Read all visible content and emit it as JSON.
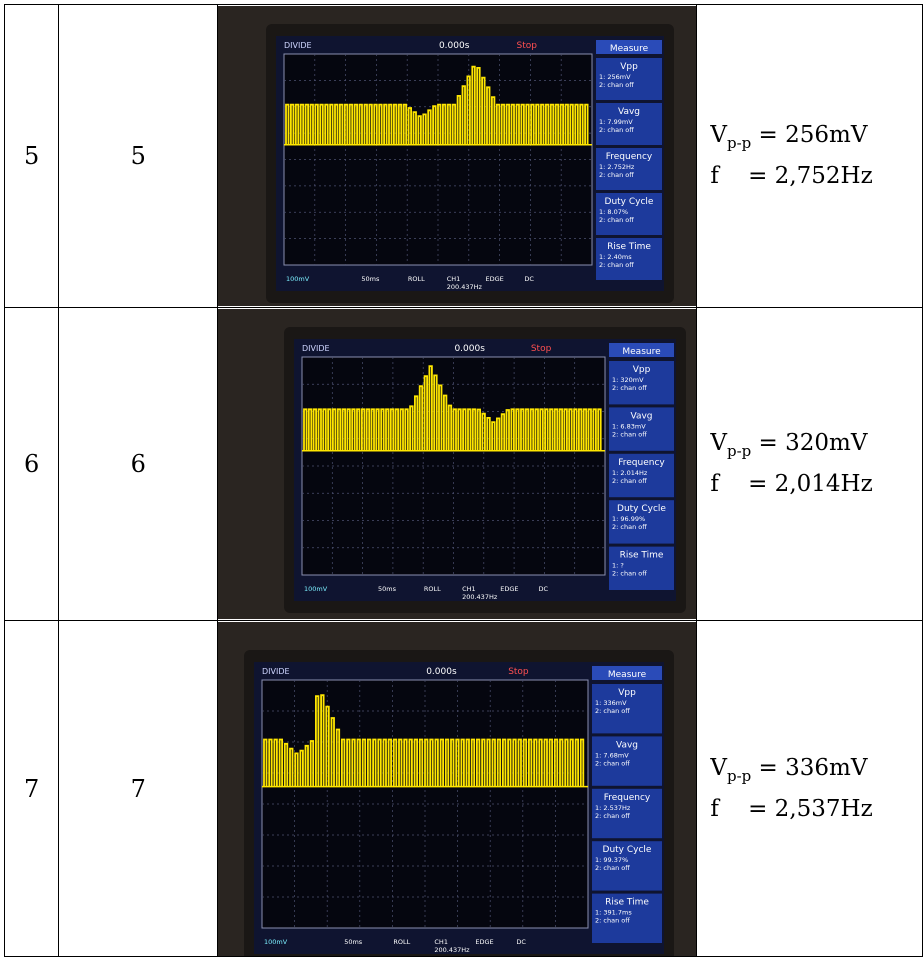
{
  "rows": [
    {
      "col1": "5",
      "col2": "5",
      "vpp_label": "V",
      "vpp_sub": "p-p",
      "vpp_value": " = 256mV",
      "freq_line": "f    = 2,752Hz",
      "osc": {
        "top_left": "DIVIDE",
        "time_offset": "0.000s",
        "stop": "Stop",
        "measure": "Measure",
        "panel": [
          {
            "title": "Vpp",
            "l1": "1: 256mV",
            "l2": "2: chan off"
          },
          {
            "title": "Vavg",
            "l1": "1: 7.99mV",
            "l2": "2: chan off"
          },
          {
            "title": "Frequency",
            "l1": "1: 2.752Hz",
            "l2": "2: chan off"
          },
          {
            "title": "Duty Cycle",
            "l1": "1: 8.07%",
            "l2": "2: chan off"
          },
          {
            "title": "Rise Time",
            "l1": "1: 2.40ms",
            "l2": "2: chan off"
          }
        ],
        "status1": "100mV",
        "status2": "50ms",
        "status3": "ROLL",
        "status4": "CH1",
        "status5": "EDGE",
        "status6": "DC",
        "status7": "200.437Hz",
        "peak_position": 0.62,
        "dip_position": 0.44,
        "peak_direction": "up"
      }
    },
    {
      "col1": "6",
      "col2": "6",
      "vpp_label": "V",
      "vpp_sub": "p-p",
      "vpp_value": " = 320mV",
      "freq_line": "f    = 2,014Hz",
      "osc": {
        "top_left": "DIVIDE",
        "time_offset": "0.000s",
        "stop": "Stop",
        "measure": "Measure",
        "panel": [
          {
            "title": "Vpp",
            "l1": "1: 320mV",
            "l2": "2: chan off"
          },
          {
            "title": "Vavg",
            "l1": "1: 6.83mV",
            "l2": "2: chan off"
          },
          {
            "title": "Frequency",
            "l1": "1: 2.014Hz",
            "l2": "2: chan off"
          },
          {
            "title": "Duty Cycle",
            "l1": "1: 96.99%",
            "l2": "2: chan off"
          },
          {
            "title": "Rise Time",
            "l1": "1: ?",
            "l2": "2: chan off"
          }
        ],
        "status1": "100mV",
        "status2": "50ms",
        "status3": "ROLL",
        "status4": "CH1",
        "status5": "EDGE",
        "status6": "DC",
        "status7": "200.437Hz",
        "peak_position": 0.42,
        "dip_position": 0.63,
        "peak_direction": "up"
      }
    },
    {
      "col1": "7",
      "col2": "7",
      "vpp_label": "V",
      "vpp_sub": "p-p",
      "vpp_value": " = 336mV",
      "freq_line": "f    = 2,537Hz",
      "osc": {
        "top_left": "DIVIDE",
        "time_offset": "0.000s",
        "stop": "Stop",
        "measure": "Measure",
        "panel": [
          {
            "title": "Vpp",
            "l1": "1: 336mV",
            "l2": "2: chan off"
          },
          {
            "title": "Vavg",
            "l1": "1: 7.68mV",
            "l2": "2: chan off"
          },
          {
            "title": "Frequency",
            "l1": "1: 2.537Hz",
            "l2": "2: chan off"
          },
          {
            "title": "Duty Cycle",
            "l1": "1: 99.37%",
            "l2": "2: chan off"
          },
          {
            "title": "Rise Time",
            "l1": "1: 391.7ms",
            "l2": "2: chan off"
          }
        ],
        "status1": "100mV",
        "status2": "50ms",
        "status3": "ROLL",
        "status4": "CH1",
        "status5": "EDGE",
        "status6": "DC",
        "status7": "200.437Hz",
        "peak_position": 0.17,
        "dip_position": 0.1,
        "peak_direction": "up"
      }
    }
  ]
}
